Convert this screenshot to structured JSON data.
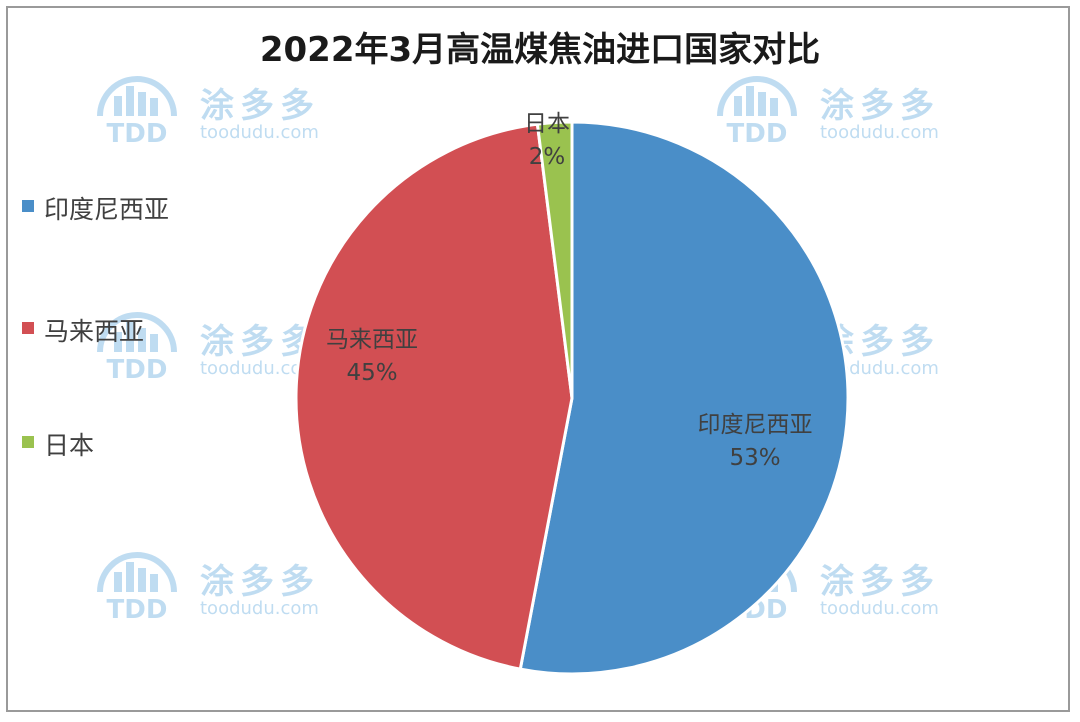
{
  "chart_data": {
    "type": "pie",
    "title": "2022年3月高温煤焦油进口国家对比",
    "slices": [
      {
        "name": "印度尼西亚",
        "value": 53,
        "label": "53%",
        "color": "#4a8ec8"
      },
      {
        "name": "马来西亚",
        "value": 45,
        "label": "45%",
        "color": "#d24f53"
      },
      {
        "name": "日本",
        "value": 2,
        "label": "2%",
        "color": "#9ac24f"
      }
    ],
    "legend_position": "left"
  },
  "watermark": {
    "logo_text": "TDD",
    "brand": "涂多多",
    "site": "toodudu.com",
    "color": "#2f8fd3"
  }
}
